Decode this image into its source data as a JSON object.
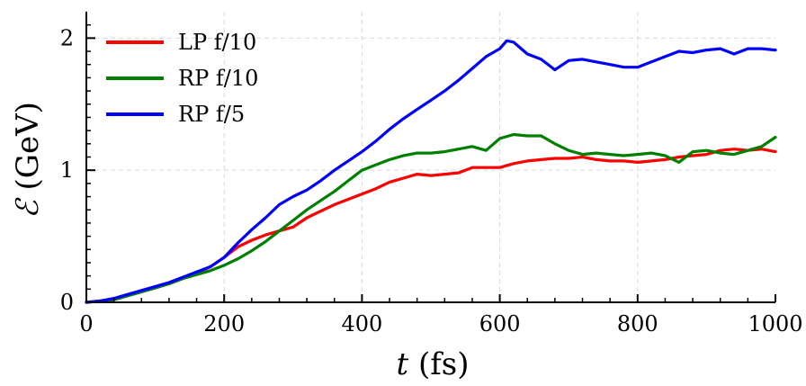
{
  "chart_data": {
    "type": "line",
    "title": "",
    "xlabel": {
      "var": "t",
      "unit": " (fs)"
    },
    "ylabel": {
      "var": "ℰ",
      "unit": " (GeV)"
    },
    "xlim": [
      0,
      1000
    ],
    "ylim": [
      0,
      2.2
    ],
    "xticks": [
      0,
      200,
      400,
      600,
      800,
      1000
    ],
    "yticks": [
      0,
      1,
      2
    ],
    "grid": true,
    "legend_position": "top-left",
    "series": [
      {
        "name": "LP f/10",
        "color": "#ff0000",
        "x": [
          0,
          20,
          40,
          60,
          80,
          100,
          120,
          140,
          160,
          180,
          200,
          220,
          240,
          260,
          280,
          300,
          320,
          340,
          360,
          380,
          400,
          420,
          440,
          460,
          480,
          500,
          520,
          540,
          560,
          580,
          600,
          620,
          640,
          660,
          680,
          700,
          720,
          740,
          760,
          780,
          800,
          820,
          840,
          860,
          880,
          900,
          920,
          940,
          960,
          980,
          1000
        ],
        "values": [
          0.0,
          0.01,
          0.02,
          0.05,
          0.08,
          0.11,
          0.14,
          0.18,
          0.22,
          0.27,
          0.34,
          0.42,
          0.47,
          0.51,
          0.54,
          0.57,
          0.64,
          0.69,
          0.74,
          0.78,
          0.82,
          0.86,
          0.91,
          0.94,
          0.97,
          0.96,
          0.97,
          0.98,
          1.02,
          1.02,
          1.02,
          1.05,
          1.07,
          1.08,
          1.09,
          1.09,
          1.1,
          1.08,
          1.07,
          1.07,
          1.06,
          1.07,
          1.08,
          1.1,
          1.11,
          1.12,
          1.15,
          1.16,
          1.15,
          1.16,
          1.14
        ]
      },
      {
        "name": "RP f/10",
        "color": "#008000",
        "x": [
          0,
          20,
          40,
          60,
          80,
          100,
          120,
          140,
          160,
          180,
          200,
          220,
          240,
          260,
          280,
          300,
          320,
          340,
          360,
          380,
          400,
          420,
          440,
          460,
          480,
          500,
          520,
          540,
          560,
          580,
          600,
          620,
          640,
          660,
          680,
          700,
          720,
          740,
          760,
          780,
          800,
          820,
          840,
          860,
          880,
          900,
          920,
          940,
          960,
          980,
          1000
        ],
        "values": [
          0.0,
          0.01,
          0.02,
          0.05,
          0.08,
          0.11,
          0.14,
          0.18,
          0.21,
          0.24,
          0.28,
          0.33,
          0.39,
          0.46,
          0.54,
          0.62,
          0.7,
          0.77,
          0.84,
          0.92,
          1.0,
          1.04,
          1.08,
          1.11,
          1.13,
          1.13,
          1.14,
          1.16,
          1.18,
          1.15,
          1.24,
          1.27,
          1.26,
          1.26,
          1.2,
          1.15,
          1.12,
          1.13,
          1.12,
          1.11,
          1.12,
          1.13,
          1.11,
          1.06,
          1.14,
          1.15,
          1.13,
          1.12,
          1.15,
          1.18,
          1.25
        ]
      },
      {
        "name": "RP f/5",
        "color": "#0000ff",
        "x": [
          0,
          20,
          40,
          60,
          80,
          100,
          120,
          140,
          160,
          180,
          200,
          220,
          240,
          260,
          280,
          300,
          320,
          340,
          360,
          380,
          400,
          420,
          440,
          460,
          480,
          500,
          520,
          540,
          560,
          580,
          600,
          610,
          620,
          640,
          660,
          680,
          700,
          720,
          740,
          760,
          780,
          800,
          820,
          840,
          860,
          880,
          900,
          920,
          940,
          960,
          980,
          1000
        ],
        "values": [
          0.0,
          0.01,
          0.03,
          0.06,
          0.09,
          0.12,
          0.15,
          0.19,
          0.23,
          0.27,
          0.34,
          0.45,
          0.55,
          0.64,
          0.74,
          0.8,
          0.85,
          0.92,
          1.0,
          1.07,
          1.14,
          1.22,
          1.31,
          1.39,
          1.46,
          1.53,
          1.6,
          1.68,
          1.77,
          1.86,
          1.92,
          1.98,
          1.97,
          1.88,
          1.84,
          1.76,
          1.83,
          1.84,
          1.82,
          1.8,
          1.78,
          1.78,
          1.82,
          1.86,
          1.9,
          1.89,
          1.91,
          1.92,
          1.88,
          1.92,
          1.92,
          1.91
        ]
      }
    ]
  }
}
